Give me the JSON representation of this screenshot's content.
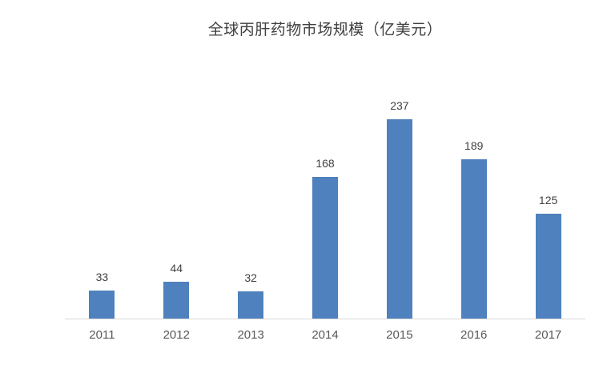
{
  "chart_data": {
    "type": "bar",
    "title": "全球丙肝药物市场规模（亿美元）",
    "categories": [
      "2011",
      "2012",
      "2013",
      "2014",
      "2015",
      "2016",
      "2017"
    ],
    "values": [
      33,
      44,
      32,
      168,
      237,
      189,
      125
    ],
    "xlabel": "",
    "ylabel": "",
    "ylim": [
      0,
      250
    ],
    "grid": "off",
    "legend": "none",
    "colors": {
      "bar": "#4e81bd",
      "value_label": "#404040",
      "axis_tick_label": "#595959",
      "axis_line": "#d9d9d9",
      "title": "#404040",
      "background": "#ffffff"
    }
  }
}
